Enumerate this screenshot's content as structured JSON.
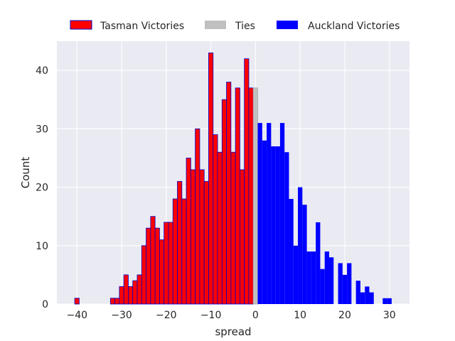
{
  "chart_data": {
    "type": "bar",
    "xlabel": "spread",
    "ylabel": "Count",
    "xlim": [
      -44.5,
      34.5
    ],
    "ylim": [
      0,
      45
    ],
    "xticks": [
      -40,
      -30,
      -20,
      -10,
      0,
      10,
      20,
      30
    ],
    "yticks": [
      0,
      10,
      20,
      30,
      40
    ],
    "grid": true,
    "legend_position": "top-center",
    "colors": {
      "tasman": "#ff0000",
      "tasman_edge": "#0000cc",
      "ties": "#c0c0c0",
      "ties_edge": "#a8a8a8",
      "auckland": "#0000ff",
      "background": "#eaeaf2",
      "grid": "#ffffff"
    },
    "series": [
      {
        "name": "Tasman Victories",
        "x": [
          -40,
          -32,
          -31,
          -30,
          -29,
          -28,
          -27,
          -26,
          -25,
          -24,
          -23,
          -22,
          -21,
          -20,
          -19,
          -18,
          -17,
          -16,
          -15,
          -14,
          -13,
          -12,
          -11,
          -10,
          -9,
          -8,
          -7,
          -6,
          -5,
          -4,
          -3,
          -2,
          -1
        ],
        "values": [
          1,
          1,
          1,
          3,
          5,
          3,
          4,
          5,
          10,
          13,
          15,
          13,
          11,
          14,
          14,
          18,
          21,
          18,
          25,
          23,
          30,
          23,
          21,
          43,
          29,
          26,
          35,
          38,
          26,
          37,
          23,
          42,
          37
        ]
      },
      {
        "name": "Ties",
        "x": [
          0
        ],
        "values": [
          37
        ]
      },
      {
        "name": "Auckland Victories",
        "x": [
          1,
          2,
          3,
          4,
          5,
          6,
          7,
          8,
          9,
          10,
          11,
          12,
          13,
          14,
          15,
          16,
          17,
          19,
          20,
          21,
          23,
          24,
          25,
          26,
          29,
          30
        ],
        "values": [
          31,
          28,
          31,
          27,
          27,
          31,
          26,
          18,
          10,
          20,
          17,
          9,
          9,
          14,
          6,
          9,
          8,
          7,
          5,
          7,
          4,
          2,
          3,
          2,
          1,
          1
        ]
      }
    ]
  }
}
